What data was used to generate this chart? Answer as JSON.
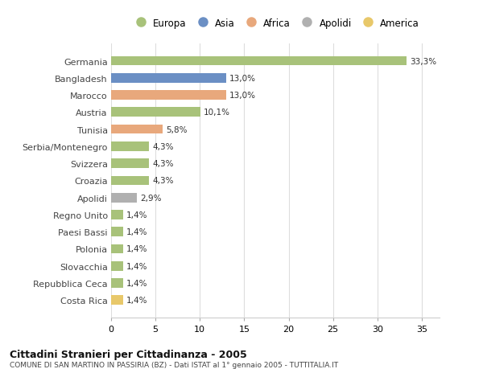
{
  "title": "Cittadini Stranieri per Cittadinanza - 2005",
  "subtitle": "COMUNE DI SAN MARTINO IN PASSIRIA (BZ) - Dati ISTAT al 1° gennaio 2005 - TUTTITALIA.IT",
  "categories": [
    "Germania",
    "Bangladesh",
    "Marocco",
    "Austria",
    "Tunisia",
    "Serbia/Montenegro",
    "Svizzera",
    "Croazia",
    "Apolidi",
    "Regno Unito",
    "Paesi Bassi",
    "Polonia",
    "Slovacchia",
    "Repubblica Ceca",
    "Costa Rica"
  ],
  "values": [
    33.3,
    13.0,
    13.0,
    10.1,
    5.8,
    4.3,
    4.3,
    4.3,
    2.9,
    1.4,
    1.4,
    1.4,
    1.4,
    1.4,
    1.4
  ],
  "labels": [
    "33,3%",
    "13,0%",
    "13,0%",
    "10,1%",
    "5,8%",
    "4,3%",
    "4,3%",
    "4,3%",
    "2,9%",
    "1,4%",
    "1,4%",
    "1,4%",
    "1,4%",
    "1,4%",
    "1,4%"
  ],
  "colors": [
    "#a8c27a",
    "#6b8fc4",
    "#e8a87c",
    "#a8c27a",
    "#e8a87c",
    "#a8c27a",
    "#a8c27a",
    "#a8c27a",
    "#b0b0b0",
    "#a8c27a",
    "#a8c27a",
    "#a8c27a",
    "#a8c27a",
    "#a8c27a",
    "#e8c86a"
  ],
  "legend_labels": [
    "Europa",
    "Asia",
    "Africa",
    "Apolidi",
    "America"
  ],
  "legend_colors": [
    "#a8c27a",
    "#6b8fc4",
    "#e8a87c",
    "#b0b0b0",
    "#e8c86a"
  ],
  "xlim": [
    0,
    37
  ],
  "xticks": [
    0,
    5,
    10,
    15,
    20,
    25,
    30,
    35
  ],
  "background_color": "#ffffff",
  "grid_color": "#dddddd",
  "bar_height": 0.55
}
